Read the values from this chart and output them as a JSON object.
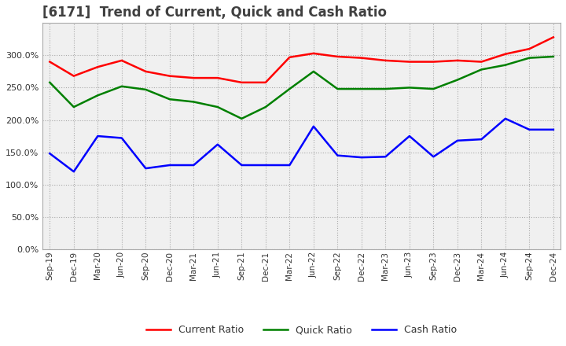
{
  "title": "[6171]  Trend of Current, Quick and Cash Ratio",
  "x_labels": [
    "Sep-19",
    "Dec-19",
    "Mar-20",
    "Jun-20",
    "Sep-20",
    "Dec-20",
    "Mar-21",
    "Jun-21",
    "Sep-21",
    "Dec-21",
    "Mar-22",
    "Jun-22",
    "Sep-22",
    "Dec-22",
    "Mar-23",
    "Jun-23",
    "Sep-23",
    "Dec-23",
    "Mar-24",
    "Jun-24",
    "Sep-24",
    "Dec-24"
  ],
  "current_ratio": [
    290,
    268,
    282,
    292,
    275,
    268,
    265,
    265,
    258,
    258,
    297,
    303,
    298,
    296,
    292,
    290,
    290,
    292,
    290,
    302,
    310,
    328
  ],
  "quick_ratio": [
    258,
    220,
    238,
    252,
    247,
    232,
    228,
    220,
    202,
    220,
    248,
    275,
    248,
    248,
    248,
    250,
    248,
    262,
    278,
    285,
    296,
    298
  ],
  "cash_ratio": [
    148,
    120,
    175,
    172,
    125,
    130,
    130,
    162,
    130,
    130,
    130,
    190,
    145,
    142,
    143,
    175,
    143,
    168,
    170,
    202,
    185,
    185
  ],
  "ylim": [
    0,
    350
  ],
  "yticks": [
    0,
    50,
    100,
    150,
    200,
    250,
    300
  ],
  "current_color": "#ff0000",
  "quick_color": "#008000",
  "cash_color": "#0000ff",
  "bg_color": "#ffffff",
  "plot_bg_color": "#f0f0f0",
  "grid_color": "#aaaaaa",
  "title_color": "#404040",
  "title_fontsize": 12,
  "legend_fontsize": 9
}
